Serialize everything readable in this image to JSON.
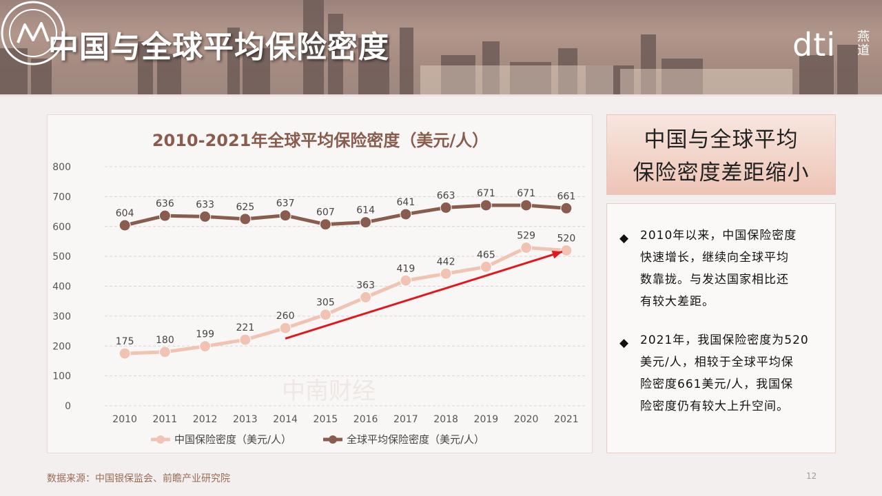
{
  "header": {
    "title": "中国与全球平均保险密度",
    "logo_text": "dti",
    "logo_sub": "燕道"
  },
  "chart_data": {
    "type": "line",
    "title": "2010-2021年全球平均保险密度（美元/人）",
    "categories": [
      "2010",
      "2011",
      "2012",
      "2013",
      "2014",
      "2015",
      "2016",
      "2017",
      "2018",
      "2019",
      "2020",
      "2021"
    ],
    "y_ticks": [
      "0",
      "100",
      "200",
      "300",
      "400",
      "500",
      "600",
      "700",
      "800"
    ],
    "ylim": [
      0,
      800
    ],
    "grid": true,
    "legend_position": "bottom",
    "series": [
      {
        "name": "中国保险密度（美元/人）",
        "color": "#f1c3b3",
        "values": [
          175,
          180,
          199,
          221,
          260,
          305,
          363,
          419,
          442,
          465,
          529,
          520
        ],
        "labels": [
          "175",
          "180",
          "199",
          "221",
          "260",
          "305",
          "363",
          "419",
          "442",
          "465",
          "529",
          "520"
        ]
      },
      {
        "name": "全球平均保险密度（美元/人）",
        "color": "#8a5c4d",
        "values": [
          604,
          636,
          633,
          625,
          637,
          607,
          614,
          641,
          663,
          671,
          671,
          661
        ],
        "labels": [
          "604",
          "636",
          "633",
          "625",
          "637",
          "607",
          "614",
          "641",
          "663",
          "671",
          "671",
          "661"
        ]
      }
    ],
    "annotation": {
      "type": "arrow",
      "color": "#e3161b",
      "from": {
        "x": "2014",
        "y": 225
      },
      "to": {
        "x": "2021",
        "y": 520
      }
    },
    "watermark": "中南财经"
  },
  "side": {
    "headline": [
      "中国与全球平均",
      "保险密度差距缩小"
    ],
    "bullets": [
      {
        "mark": "◆",
        "lines": [
          "2010年以来，中国保险密度",
          "快速增长，继续向全球平均",
          "数靠拢。与发达国家相比还",
          "有较大差距。"
        ]
      },
      {
        "mark": "◆",
        "lines": [
          "2021年，我国保险密度为520",
          "美元/人，相较于全球平均保",
          "险密度661美元/人，我国保",
          "险密度仍有较大上升空间。"
        ]
      }
    ]
  },
  "footer": {
    "source": "数据来源：中国银保监会、前瞻产业研究院",
    "page": "12"
  }
}
